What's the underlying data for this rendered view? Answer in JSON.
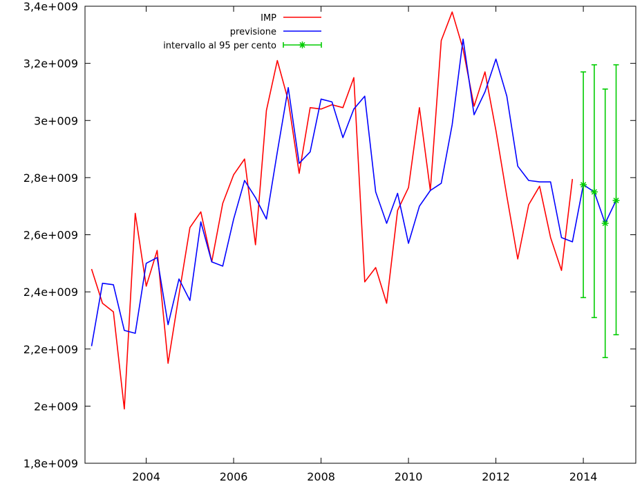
{
  "chart_data": {
    "type": "line",
    "xlim": [
      2002.6,
      2015.2
    ],
    "ylim": [
      1800000000,
      3400000000
    ],
    "x_ticks": [
      {
        "value": 2004,
        "label": "2004"
      },
      {
        "value": 2006,
        "label": "2006"
      },
      {
        "value": 2008,
        "label": "2008"
      },
      {
        "value": 2010,
        "label": "2010"
      },
      {
        "value": 2012,
        "label": "2012"
      },
      {
        "value": 2014,
        "label": "2014"
      }
    ],
    "y_ticks": [
      {
        "value": 1800000000,
        "label": "1,8e+009"
      },
      {
        "value": 2000000000,
        "label": "2e+009"
      },
      {
        "value": 2200000000,
        "label": "2,2e+009"
      },
      {
        "value": 2400000000,
        "label": "2,4e+009"
      },
      {
        "value": 2600000000,
        "label": "2,6e+009"
      },
      {
        "value": 2800000000,
        "label": "2,8e+009"
      },
      {
        "value": 3000000000,
        "label": "3e+009"
      },
      {
        "value": 3200000000,
        "label": "3,2e+009"
      },
      {
        "value": 3400000000,
        "label": "3,4e+009"
      }
    ],
    "legend_position": "top-center",
    "grid": false,
    "series": [
      {
        "name": "IMP",
        "color": "#ff0000",
        "kind": "line",
        "points": [
          [
            2002.75,
            2480000000
          ],
          [
            2003.0,
            2360000000
          ],
          [
            2003.25,
            2330000000
          ],
          [
            2003.5,
            1990000000
          ],
          [
            2003.75,
            2675000000
          ],
          [
            2004.0,
            2420000000
          ],
          [
            2004.25,
            2545000000
          ],
          [
            2004.5,
            2150000000
          ],
          [
            2004.75,
            2390000000
          ],
          [
            2005.0,
            2625000000
          ],
          [
            2005.25,
            2680000000
          ],
          [
            2005.5,
            2505000000
          ],
          [
            2005.75,
            2710000000
          ],
          [
            2006.0,
            2810000000
          ],
          [
            2006.25,
            2865000000
          ],
          [
            2006.5,
            2565000000
          ],
          [
            2006.75,
            3035000000
          ],
          [
            2007.0,
            3210000000
          ],
          [
            2007.25,
            3070000000
          ],
          [
            2007.5,
            2815000000
          ],
          [
            2007.75,
            3045000000
          ],
          [
            2008.0,
            3040000000
          ],
          [
            2008.25,
            3055000000
          ],
          [
            2008.5,
            3045000000
          ],
          [
            2008.75,
            3150000000
          ],
          [
            2009.0,
            2435000000
          ],
          [
            2009.25,
            2485000000
          ],
          [
            2009.5,
            2360000000
          ],
          [
            2009.75,
            2685000000
          ],
          [
            2010.0,
            2765000000
          ],
          [
            2010.25,
            3045000000
          ],
          [
            2010.5,
            2755000000
          ],
          [
            2010.75,
            3280000000
          ],
          [
            2011.0,
            3380000000
          ],
          [
            2011.25,
            3250000000
          ],
          [
            2011.5,
            3050000000
          ],
          [
            2011.75,
            3170000000
          ],
          [
            2012.0,
            2965000000
          ],
          [
            2012.25,
            2735000000
          ],
          [
            2012.5,
            2515000000
          ],
          [
            2012.75,
            2705000000
          ],
          [
            2013.0,
            2770000000
          ],
          [
            2013.25,
            2590000000
          ],
          [
            2013.5,
            2475000000
          ],
          [
            2013.75,
            2795000000
          ]
        ]
      },
      {
        "name": "previsione",
        "color": "#0000ff",
        "kind": "line",
        "points": [
          [
            2002.75,
            2210000000
          ],
          [
            2003.0,
            2430000000
          ],
          [
            2003.25,
            2425000000
          ],
          [
            2003.5,
            2265000000
          ],
          [
            2003.75,
            2255000000
          ],
          [
            2004.0,
            2500000000
          ],
          [
            2004.25,
            2520000000
          ],
          [
            2004.5,
            2285000000
          ],
          [
            2004.75,
            2445000000
          ],
          [
            2005.0,
            2370000000
          ],
          [
            2005.25,
            2645000000
          ],
          [
            2005.5,
            2505000000
          ],
          [
            2005.75,
            2490000000
          ],
          [
            2006.0,
            2655000000
          ],
          [
            2006.25,
            2790000000
          ],
          [
            2006.5,
            2730000000
          ],
          [
            2006.75,
            2655000000
          ],
          [
            2007.0,
            2890000000
          ],
          [
            2007.25,
            3115000000
          ],
          [
            2007.5,
            2850000000
          ],
          [
            2007.75,
            2890000000
          ],
          [
            2008.0,
            3075000000
          ],
          [
            2008.25,
            3065000000
          ],
          [
            2008.5,
            2940000000
          ],
          [
            2008.75,
            3040000000
          ],
          [
            2009.0,
            3085000000
          ],
          [
            2009.25,
            2750000000
          ],
          [
            2009.5,
            2640000000
          ],
          [
            2009.75,
            2745000000
          ],
          [
            2010.0,
            2570000000
          ],
          [
            2010.25,
            2700000000
          ],
          [
            2010.5,
            2755000000
          ],
          [
            2010.75,
            2780000000
          ],
          [
            2011.0,
            2985000000
          ],
          [
            2011.25,
            3285000000
          ],
          [
            2011.5,
            3020000000
          ],
          [
            2011.75,
            3100000000
          ],
          [
            2012.0,
            3215000000
          ],
          [
            2012.25,
            3085000000
          ],
          [
            2012.5,
            2840000000
          ],
          [
            2012.75,
            2790000000
          ],
          [
            2013.0,
            2785000000
          ],
          [
            2013.25,
            2785000000
          ],
          [
            2013.5,
            2590000000
          ],
          [
            2013.75,
            2575000000
          ],
          [
            2014.0,
            2775000000
          ],
          [
            2014.25,
            2750000000
          ],
          [
            2014.5,
            2640000000
          ],
          [
            2014.75,
            2720000000
          ]
        ]
      },
      {
        "name": "intervallo al 95 per cento",
        "color": "#00cc00",
        "kind": "errorbar",
        "points": [
          {
            "x": 2014.0,
            "y": 2775000000,
            "low": 2380000000,
            "high": 3170000000
          },
          {
            "x": 2014.25,
            "y": 2750000000,
            "low": 2310000000,
            "high": 3195000000
          },
          {
            "x": 2014.5,
            "y": 2640000000,
            "low": 2170000000,
            "high": 3110000000
          },
          {
            "x": 2014.75,
            "y": 2720000000,
            "low": 2250000000,
            "high": 3195000000
          }
        ]
      }
    ]
  }
}
